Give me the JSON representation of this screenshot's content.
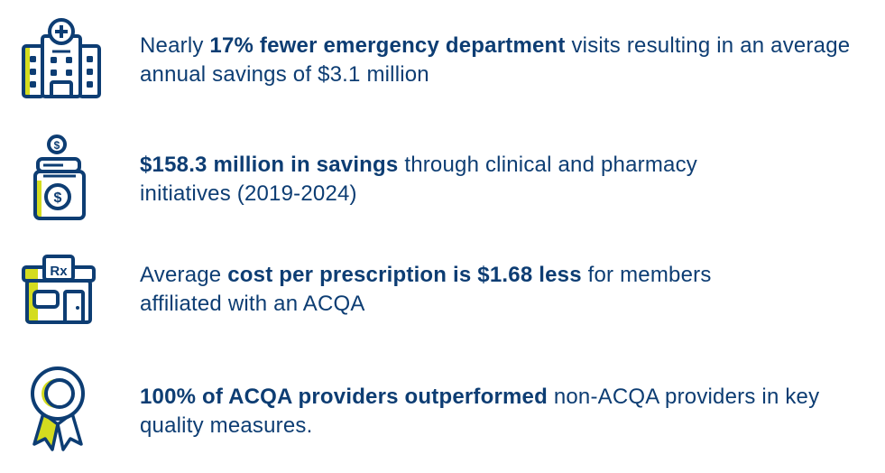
{
  "colors": {
    "navy": "#0d3d73",
    "accent": "#d4dc1f"
  },
  "items": [
    {
      "icon": "hospital-icon",
      "segments": [
        {
          "text": "Nearly ",
          "bold": false
        },
        {
          "text": "17% fewer emergency department",
          "bold": true
        },
        {
          "text": " visits resulting in an average annual savings of $3.1 million",
          "bold": false
        }
      ]
    },
    {
      "icon": "savings-jar-icon",
      "segments": [
        {
          "text": "$158.3 million in savings",
          "bold": true
        },
        {
          "text": " through clinical and pharmacy initiatives (2019-2024)",
          "bold": false
        }
      ]
    },
    {
      "icon": "pharmacy-icon",
      "icon_label": "Rx",
      "segments": [
        {
          "text": "Average ",
          "bold": false
        },
        {
          "text": "cost per prescription is $1.68 less",
          "bold": true
        },
        {
          "text": " for members affiliated with an ACQA",
          "bold": false
        }
      ]
    },
    {
      "icon": "award-ribbon-icon",
      "segments": [
        {
          "text": "100% of ACQA providers outperformed",
          "bold": true
        },
        {
          "text": " non-ACQA providers in key quality measures.",
          "bold": false
        }
      ]
    }
  ]
}
